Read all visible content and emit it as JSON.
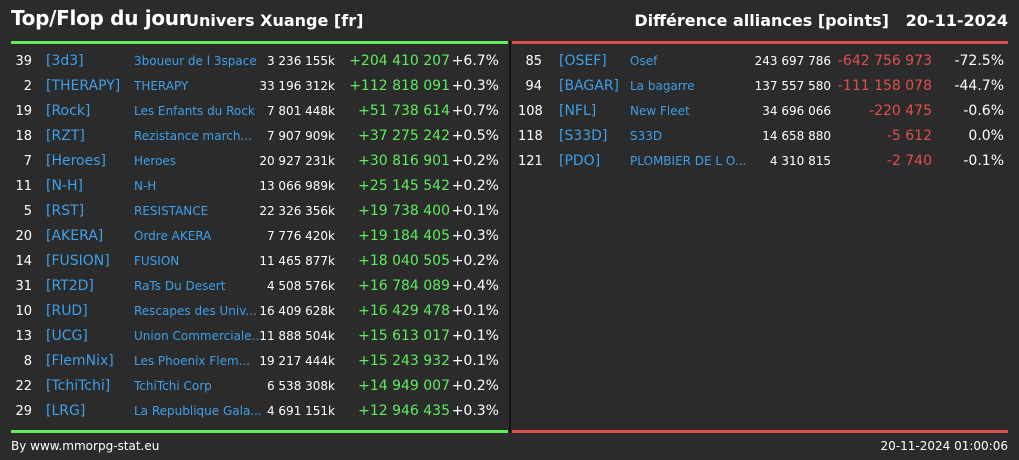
{
  "header": {
    "title": "Top/Flop du jour",
    "universe": "Univers Xuange [fr]",
    "category": "Différence alliances [points]",
    "date": "20-11-2024"
  },
  "colors": {
    "positive": "#5ded5d",
    "negative": "#e0504a",
    "tag": "#3fa0ea"
  },
  "top": [
    {
      "rank": "39",
      "tag": "[3d3]",
      "name": "3boueur de l 3space",
      "points": "3 236 155k",
      "diff": "+204 410 207",
      "pct": "+6.7%"
    },
    {
      "rank": "2",
      "tag": "[THERAPY]",
      "name": "THERAPY",
      "points": "33 196 312k",
      "diff": "+112 818 091",
      "pct": "+0.3%"
    },
    {
      "rank": "19",
      "tag": "[Rock]",
      "name": "Les Enfants du Rock",
      "points": "7 801 448k",
      "diff": "+51 738 614",
      "pct": "+0.7%"
    },
    {
      "rank": "18",
      "tag": "[RZT]",
      "name": "Rezistance march...",
      "points": "7 907 909k",
      "diff": "+37 275 242",
      "pct": "+0.5%"
    },
    {
      "rank": "7",
      "tag": "[Heroes]",
      "name": "Heroes",
      "points": "20 927 231k",
      "diff": "+30 816 901",
      "pct": "+0.2%"
    },
    {
      "rank": "11",
      "tag": "[N-H]",
      "name": "N-H",
      "points": "13 066 989k",
      "diff": "+25 145 542",
      "pct": "+0.2%"
    },
    {
      "rank": "5",
      "tag": "[RST]",
      "name": "RESISTANCE",
      "points": "22 326 356k",
      "diff": "+19 738 400",
      "pct": "+0.1%"
    },
    {
      "rank": "20",
      "tag": "[AKERA]",
      "name": "Ordre AKERA",
      "points": "7 776 420k",
      "diff": "+19 184 405",
      "pct": "+0.3%"
    },
    {
      "rank": "14",
      "tag": "[FUSION]",
      "name": "FUSION",
      "points": "11 465 877k",
      "diff": "+18 040 505",
      "pct": "+0.2%"
    },
    {
      "rank": "31",
      "tag": "[RT2D]",
      "name": "RaTs Du Desert",
      "points": "4 508 576k",
      "diff": "+16 784 089",
      "pct": "+0.4%"
    },
    {
      "rank": "10",
      "tag": "[RUD]",
      "name": "Rescapes des Univ...",
      "points": "16 409 628k",
      "diff": "+16 429 478",
      "pct": "+0.1%"
    },
    {
      "rank": "13",
      "tag": "[UCG]",
      "name": "Union Commerciale...",
      "points": "11 888 504k",
      "diff": "+15 613 017",
      "pct": "+0.1%"
    },
    {
      "rank": "8",
      "tag": "[FlemNix]",
      "name": "Les Phoenix Flem...",
      "points": "19 217 444k",
      "diff": "+15 243 932",
      "pct": "+0.1%"
    },
    {
      "rank": "22",
      "tag": "[TchiTchi]",
      "name": "TchiTchi Corp",
      "points": "6 538 308k",
      "diff": "+14 949 007",
      "pct": "+0.2%"
    },
    {
      "rank": "29",
      "tag": "[LRG]",
      "name": "La Republique Gala...",
      "points": "4 691 151k",
      "diff": "+12 946 435",
      "pct": "+0.3%"
    }
  ],
  "flop": [
    {
      "rank": "85",
      "tag": "[OSEF]",
      "name": "Osef",
      "points": "243 697 786",
      "diff": "-642 756 973",
      "pct": "-72.5%"
    },
    {
      "rank": "94",
      "tag": "[BAGAR]",
      "name": "La bagarre",
      "points": "137 557 580",
      "diff": "-111 158 078",
      "pct": "-44.7%"
    },
    {
      "rank": "108",
      "tag": "[NFL]",
      "name": "New Fleet",
      "points": "34 696 066",
      "diff": "-220 475",
      "pct": "-0.6%"
    },
    {
      "rank": "118",
      "tag": "[S33D]",
      "name": "S33D",
      "points": "14 658 880",
      "diff": "-5 612",
      "pct": "0.0%"
    },
    {
      "rank": "121",
      "tag": "[PDO]",
      "name": "PLOMBIER DE L O...",
      "points": "4 310 815",
      "diff": "-2 740",
      "pct": "-0.1%"
    }
  ],
  "footer": {
    "credit": "By www.mmorpg-stat.eu",
    "timestamp": "20-11-2024 01:00:06"
  }
}
